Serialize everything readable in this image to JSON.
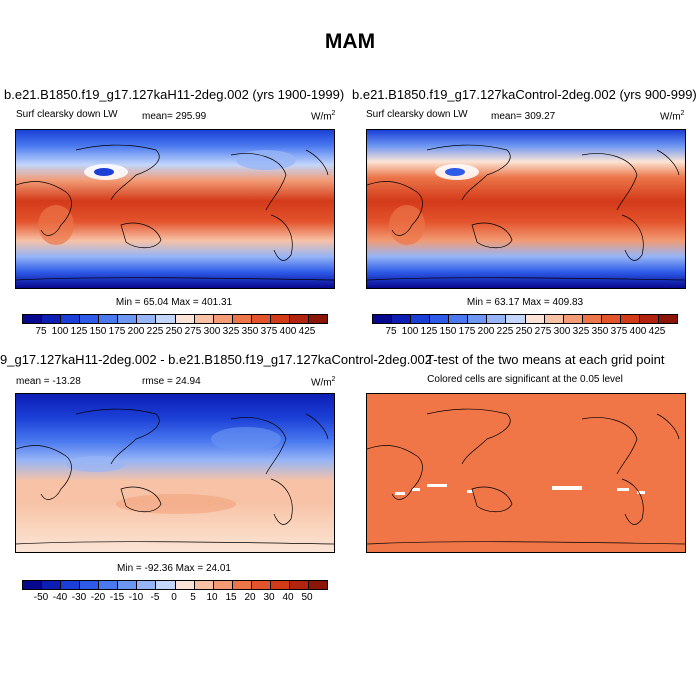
{
  "main_title": "MAM",
  "palette_abs": [
    "#08088f",
    "#0d1eb5",
    "#1b3fd6",
    "#2d5ae8",
    "#4a79ef",
    "#6d96f2",
    "#97b5f6",
    "#c3d6fb",
    "#fbe4d6",
    "#f7c2a6",
    "#f29b74",
    "#ec7549",
    "#e3532c",
    "#d33a1a",
    "#b3240f",
    "#8a1508"
  ],
  "palette_diff": [
    "#08088f",
    "#0d1eb5",
    "#1b3fd6",
    "#2d5ae8",
    "#4a79ef",
    "#6d96f2",
    "#97b5f6",
    "#c3d6fb",
    "#fbe4d6",
    "#f7c2a6",
    "#f29b74",
    "#ec7549",
    "#e3532c",
    "#d33a1a",
    "#b3240f",
    "#8a1508"
  ],
  "signif_color": "#f07648",
  "panel1": {
    "title": "b.e21.B1850.f19_g17.127kaH11-2deg.002 (yrs 1900-1999)",
    "variable": "Surf clearsky down LW",
    "mean": "mean= 295.99",
    "units": "W/m",
    "units_sup": "2",
    "minmax": "Min =  65.04 Max = 401.31"
  },
  "panel2": {
    "title": "b.e21.B1850.f19_g17.127kaControl-2deg.002 (yrs 900-999)",
    "variable": "Surf clearsky down LW",
    "mean": "mean= 309.27",
    "units": "W/m",
    "units_sup": "2",
    "minmax": "Min =  63.17 Max = 409.83"
  },
  "panel3": {
    "title": "9_g17.127kaH11-2deg.002 - b.e21.B1850.f19_g17.127kaControl-2deg.002",
    "mean": "mean = -13.28",
    "rmse": "rmse =  24.94",
    "units": "W/m",
    "units_sup": "2",
    "minmax": "Min = -92.36 Max =  24.01"
  },
  "panel4": {
    "title": "T-test of the two means at each grid point",
    "subtitle": "Colored cells are significant at the 0.05 level"
  },
  "chart_data": [
    {
      "type": "heatmap",
      "title": "b.e21.B1850.f19_g17.127kaH11-2deg.002 (yrs 1900-1999)",
      "variable": "Surf clearsky down LW",
      "units": "W/m2",
      "mean": 295.99,
      "min": 65.04,
      "max": 401.31,
      "colorbar_levels": [
        75,
        100,
        125,
        150,
        175,
        200,
        225,
        250,
        275,
        300,
        325,
        350,
        375,
        400,
        425
      ]
    },
    {
      "type": "heatmap",
      "title": "b.e21.B1850.f19_g17.127kaControl-2deg.002 (yrs 900-999)",
      "variable": "Surf clearsky down LW",
      "units": "W/m2",
      "mean": 309.27,
      "min": 63.17,
      "max": 409.83,
      "colorbar_levels": [
        75,
        100,
        125,
        150,
        175,
        200,
        225,
        250,
        275,
        300,
        325,
        350,
        375,
        400,
        425
      ]
    },
    {
      "type": "heatmap",
      "title": "9_g17.127kaH11-2deg.002 - b.e21.B1850.f19_g17.127kaControl-2deg.002",
      "units": "W/m2",
      "mean": -13.28,
      "rmse": 24.94,
      "min": -92.36,
      "max": 24.01,
      "colorbar_levels": [
        -50,
        -40,
        -30,
        -20,
        -15,
        -10,
        -5,
        0,
        5,
        10,
        15,
        20,
        30,
        40,
        50
      ]
    },
    {
      "type": "heatmap",
      "title": "T-test of the two means at each grid point",
      "subtitle": "Colored cells are significant at the 0.05 level"
    }
  ],
  "cbar_labels_abs": [
    "75",
    "100",
    "125",
    "150",
    "175",
    "200",
    "225",
    "250",
    "275",
    "300",
    "325",
    "350",
    "375",
    "400",
    "425"
  ],
  "cbar_labels_diff": [
    "-50",
    "-40",
    "-30",
    "-20",
    "-15",
    "-10",
    "-5",
    "0",
    "5",
    "10",
    "15",
    "20",
    "30",
    "40",
    "50"
  ]
}
